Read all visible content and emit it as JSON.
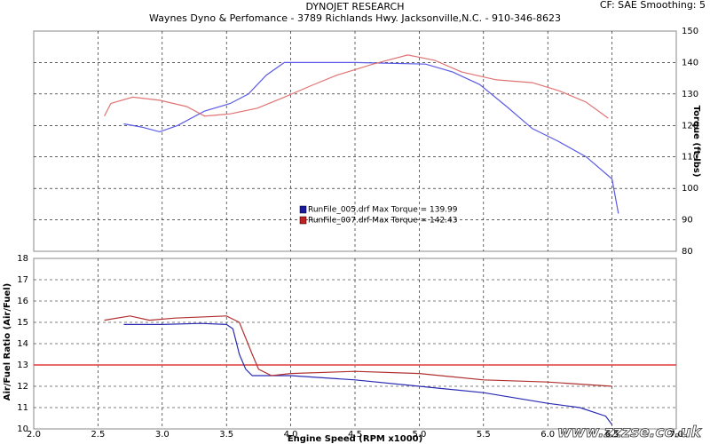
{
  "header": {
    "title": "DYNOJET RESEARCH",
    "subtitle": "Waynes Dyno & Perfomance - 3789 Richlands Hwy. Jacksonville,N.C. - 910-346-8623",
    "settings": "CF: SAE  Smoothing: 5"
  },
  "watermark": "www.zzzse.co.uk",
  "chart_data": [
    {
      "type": "line",
      "y_axis_label": "Torque (ft-lbs)",
      "y_axis_side": "right",
      "xlim": [
        2,
        7
      ],
      "ylim": [
        80,
        150
      ],
      "yticks": [
        80,
        90,
        100,
        110,
        120,
        130,
        140,
        150
      ],
      "grid": true,
      "series": [
        {
          "name": "RunFile_005.drf Max Torque = 139.99",
          "color": "#5a5ae6",
          "legend_color": "#1a1aa0",
          "x": [
            2.7,
            2.84,
            2.98,
            3.12,
            3.33,
            3.53,
            3.67,
            3.81,
            3.95,
            4.5,
            5.05,
            5.26,
            5.47,
            5.68,
            5.88,
            6.08,
            6.3,
            6.5,
            6.55
          ],
          "values": [
            120.5,
            119.5,
            118,
            120,
            124.6,
            127,
            130,
            136,
            140,
            140,
            139.5,
            137,
            133,
            126,
            119,
            115,
            110,
            103,
            92
          ]
        },
        {
          "name": "RunFile_007.drf Max Torque = 142.43",
          "color": "#e07474",
          "legend_color": "#c02020",
          "x": [
            2.55,
            2.6,
            2.77,
            2.98,
            3.19,
            3.33,
            3.53,
            3.74,
            3.95,
            4.15,
            4.36,
            4.64,
            4.91,
            5.12,
            5.33,
            5.6,
            5.88,
            6.09,
            6.3,
            6.47
          ],
          "values": [
            123,
            127,
            129,
            128,
            126,
            123,
            123.7,
            125.5,
            129,
            132.5,
            136,
            139.5,
            142.4,
            140.7,
            137,
            134.5,
            133.6,
            131,
            127.4,
            122.3
          ]
        }
      ]
    },
    {
      "type": "line",
      "y_axis_label": "Air/Fuel Ratio (Air/Fuel)",
      "x_axis_label": "Engine Speed (RPM x1000)",
      "y_axis_side": "left",
      "xlim": [
        2,
        7
      ],
      "ylim": [
        10,
        18
      ],
      "yticks": [
        10,
        11,
        12,
        13,
        14,
        15,
        16,
        17,
        18
      ],
      "grid": true,
      "xticks": [
        {
          "value": 2,
          "label": "2.0"
        },
        {
          "value": 2.5,
          "label": "2.5"
        },
        {
          "value": 3,
          "label": "3.0"
        },
        {
          "value": 3.5,
          "label": "3.5"
        },
        {
          "value": 4,
          "label": "4.0"
        },
        {
          "value": 4.5,
          "label": "4.5"
        },
        {
          "value": 5,
          "label": "5.0"
        },
        {
          "value": 5.5,
          "label": "5.5"
        },
        {
          "value": 6,
          "label": "6.0"
        },
        {
          "value": 6.5,
          "label": "6.5"
        },
        {
          "value": 7,
          "label": "7.0"
        }
      ],
      "reference_line": {
        "value": 13,
        "color": "#e03c3c"
      },
      "series": [
        {
          "color": "#2a2ab4",
          "x": [
            2.7,
            3.0,
            3.3,
            3.5,
            3.55,
            3.6,
            3.65,
            3.7,
            4.0,
            4.5,
            5.0,
            5.5,
            6.0,
            6.25,
            6.45,
            6.5
          ],
          "values": [
            14.9,
            14.9,
            14.95,
            14.9,
            14.7,
            13.5,
            12.8,
            12.5,
            12.5,
            12.3,
            12.0,
            11.7,
            11.2,
            11.0,
            10.6,
            10.2
          ]
        },
        {
          "color": "#b03030",
          "x": [
            2.55,
            2.75,
            2.9,
            3.1,
            3.5,
            3.6,
            3.7,
            3.75,
            3.85,
            4.0,
            4.5,
            5.0,
            5.5,
            6.0,
            6.5
          ],
          "values": [
            15.1,
            15.3,
            15.1,
            15.2,
            15.3,
            15.0,
            13.5,
            12.8,
            12.5,
            12.6,
            12.7,
            12.6,
            12.3,
            12.2,
            12.0
          ]
        }
      ]
    }
  ]
}
